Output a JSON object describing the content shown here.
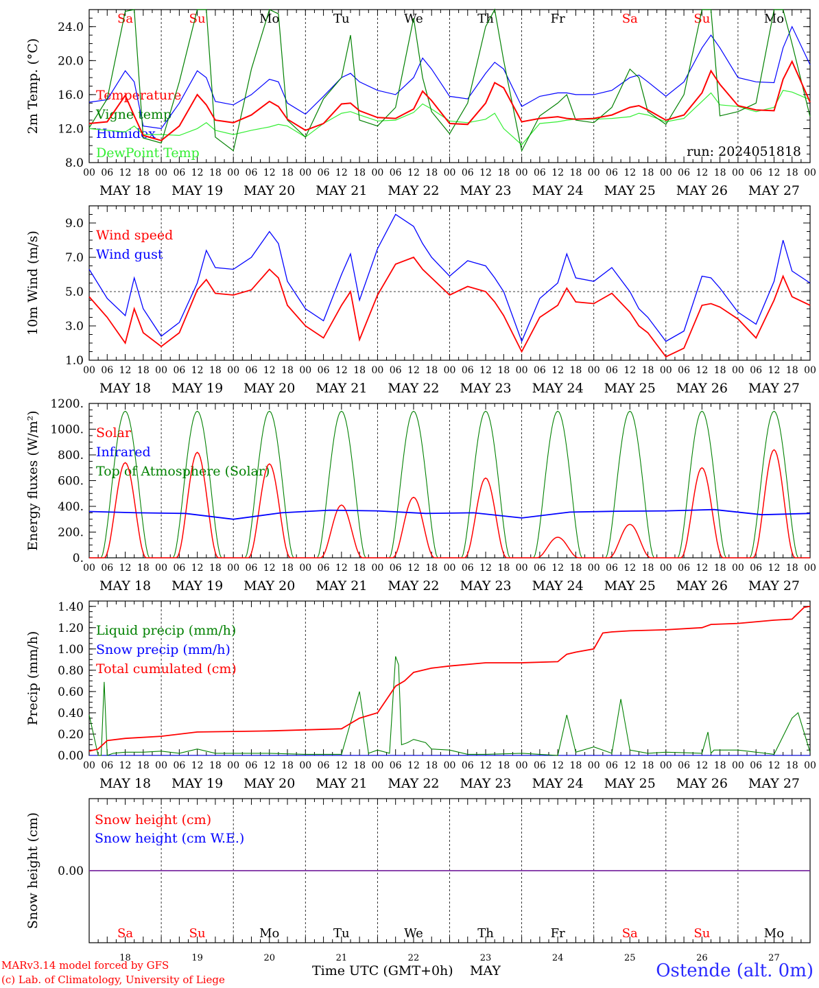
{
  "station": "Ostende (alt. 0m)",
  "credits": [
    "MARv3.14 model forced by GFS",
    "(c) Lab. of Climatology, University of Liege"
  ],
  "x_title": "Time UTC (GMT+0h)",
  "x_month": "MAY",
  "run_label": "run: 2024051818",
  "days": {
    "names": [
      "Sa",
      "Su",
      "Mo",
      "Tu",
      "We",
      "Th",
      "Fr",
      "Sa",
      "Su",
      "Mo"
    ],
    "weekend": [
      true,
      true,
      false,
      false,
      false,
      false,
      false,
      true,
      true,
      false
    ],
    "dates": [
      "MAY 18",
      "MAY 19",
      "MAY 20",
      "MAY 21",
      "MAY 22",
      "MAY 23",
      "MAY 24",
      "MAY 25",
      "MAY 26",
      "MAY 27"
    ],
    "numbers": [
      "18",
      "19",
      "20",
      "21",
      "22",
      "23",
      "24",
      "25",
      "26",
      "27"
    ],
    "hour_labels": [
      "00",
      "06",
      "12",
      "18"
    ],
    "last_hour_label": "00"
  },
  "colors": {
    "red": "#ff0000",
    "green": "#008000",
    "blue": "#0000ff",
    "lightgreen": "#33ee33",
    "purple": "#7a2aa0",
    "black": "#000000"
  },
  "chart_data": [
    {
      "type": "line",
      "ylabel": "2m Temp. (°C)",
      "ylim": [
        8,
        26
      ],
      "yticks": [
        "8.0",
        "12.0",
        "16.0",
        "20.0",
        "24.0"
      ],
      "ytick_values": [
        8,
        12,
        16,
        20,
        24
      ],
      "x_hours": [
        0,
        6,
        12,
        15,
        18,
        24,
        30,
        36,
        39,
        42,
        48,
        54,
        60,
        63,
        66,
        72,
        78,
        84,
        87,
        90,
        96,
        102,
        108,
        111,
        114,
        120,
        126,
        132,
        135,
        138,
        144,
        150,
        156,
        159,
        162,
        168,
        174,
        180,
        183,
        186,
        192,
        198,
        204,
        207,
        210,
        216,
        222,
        228,
        231,
        234,
        240
      ],
      "series": [
        {
          "name": "Temperature",
          "color": "red",
          "values": [
            12.6,
            12.8,
            15.9,
            13.5,
            11.2,
            10.6,
            12.3,
            16.0,
            14.8,
            13.0,
            12.7,
            13.6,
            15.2,
            14.6,
            13.1,
            11.8,
            12.6,
            14.9,
            15.0,
            14.1,
            13.3,
            13.2,
            14.3,
            16.4,
            15.3,
            12.6,
            12.5,
            15.0,
            17.4,
            16.8,
            12.8,
            13.2,
            13.4,
            13.2,
            13.1,
            13.2,
            13.6,
            14.5,
            14.7,
            14.2,
            13.0,
            13.6,
            16.2,
            18.8,
            17.2,
            14.7,
            14.2,
            14.1,
            17.8,
            19.9,
            15.1
          ],
          "x_override": [
            0,
            6,
            12,
            15,
            18,
            24,
            30,
            36,
            39,
            42,
            48,
            54,
            60,
            63,
            66,
            72,
            78,
            84,
            87,
            90,
            96,
            102,
            108,
            111,
            114,
            120,
            126,
            132,
            135,
            138,
            144,
            150,
            156,
            159,
            162,
            168,
            174,
            180,
            183,
            186,
            192,
            198,
            204,
            207,
            210,
            216,
            222,
            228,
            231,
            234,
            240
          ]
        },
        {
          "name": "Vigne temp",
          "color": "green",
          "values": [
            12.1,
            15.5,
            25.8,
            26.0,
            10.9,
            10.3,
            17.5,
            26.0,
            26.0,
            11.0,
            9.4,
            19.0,
            26.0,
            25.5,
            13.0,
            11.0,
            15.5,
            18.0,
            23.0,
            13.0,
            12.3,
            14.5,
            25.0,
            18.0,
            14.0,
            11.4,
            15.0,
            24.0,
            26.0,
            20.0,
            9.4,
            13.5,
            15.0,
            16.0,
            13.0,
            12.7,
            14.5,
            19.0,
            18.0,
            14.0,
            12.5,
            16.0,
            26.0,
            26.0,
            13.5,
            14.0,
            15.0,
            26.0,
            26.0,
            22.0,
            13.4
          ]
        },
        {
          "name": "Humidex",
          "color": "blue",
          "values": [
            15.1,
            15.4,
            18.8,
            17.5,
            12.3,
            12.0,
            15.0,
            18.8,
            18.0,
            15.2,
            14.8,
            16.0,
            17.8,
            17.5,
            15.0,
            13.7,
            15.8,
            18.0,
            18.5,
            17.5,
            16.5,
            16.0,
            18.0,
            20.3,
            19.0,
            15.8,
            15.5,
            18.5,
            19.8,
            19.0,
            14.6,
            15.8,
            16.2,
            16.2,
            16.0,
            16.0,
            16.5,
            18.0,
            18.3,
            17.5,
            15.8,
            17.5,
            21.5,
            23.0,
            21.5,
            18.0,
            17.5,
            17.4,
            21.5,
            24.0,
            19.5
          ]
        },
        {
          "name": "DewPoint Temp",
          "color": "lightgreen",
          "values": [
            12.0,
            11.8,
            11.6,
            12.3,
            11.3,
            11.3,
            11.2,
            12.0,
            12.7,
            11.8,
            11.3,
            11.8,
            12.2,
            12.5,
            12.3,
            11.0,
            12.6,
            13.8,
            14.0,
            13.6,
            12.9,
            13.0,
            13.9,
            14.9,
            14.3,
            12.9,
            12.7,
            13.1,
            13.8,
            12.0,
            10.1,
            12.6,
            12.8,
            13.0,
            13.1,
            13.1,
            13.2,
            13.4,
            13.8,
            13.6,
            12.8,
            13.2,
            15.2,
            16.2,
            14.8,
            14.6,
            14.0,
            14.5,
            16.5,
            16.3,
            15.4
          ]
        }
      ]
    },
    {
      "type": "line",
      "ylabel": "10m Wind (m/s)",
      "ylim": [
        1,
        10
      ],
      "yticks": [
        "1.0",
        "3.0",
        "5.0",
        "7.0",
        "9.0"
      ],
      "ytick_values": [
        1,
        3,
        5,
        7,
        9
      ],
      "reference_line": 5,
      "x_hours": [
        0,
        6,
        12,
        15,
        18,
        24,
        30,
        36,
        39,
        42,
        48,
        54,
        60,
        63,
        66,
        72,
        78,
        84,
        87,
        90,
        96,
        102,
        108,
        111,
        114,
        120,
        126,
        132,
        135,
        138,
        144,
        150,
        156,
        159,
        162,
        168,
        174,
        180,
        183,
        186,
        192,
        198,
        204,
        207,
        210,
        216,
        222,
        228,
        231,
        234,
        240
      ],
      "series": [
        {
          "name": "Wind speed",
          "color": "red",
          "values": [
            4.7,
            3.5,
            2.0,
            4.0,
            2.6,
            1.8,
            2.6,
            5.1,
            5.7,
            4.9,
            4.8,
            5.1,
            6.3,
            5.8,
            4.2,
            3.0,
            2.3,
            4.2,
            5.0,
            2.2,
            4.8,
            6.6,
            7.0,
            6.3,
            5.8,
            4.8,
            5.3,
            5.0,
            4.4,
            3.6,
            1.5,
            3.5,
            4.2,
            5.2,
            4.4,
            4.3,
            4.9,
            3.8,
            3.0,
            2.6,
            1.2,
            1.7,
            4.2,
            4.3,
            4.1,
            3.4,
            2.3,
            4.5,
            5.9,
            4.7,
            4.2
          ]
        },
        {
          "name": "Wind gust",
          "color": "blue",
          "values": [
            6.3,
            4.6,
            3.6,
            5.8,
            4.0,
            2.4,
            3.2,
            5.5,
            7.4,
            6.4,
            6.3,
            7.0,
            8.5,
            7.8,
            5.6,
            4.0,
            3.3,
            6.0,
            7.2,
            4.5,
            7.5,
            9.5,
            8.8,
            7.8,
            7.0,
            5.9,
            6.8,
            6.5,
            5.8,
            5.0,
            2.1,
            4.6,
            5.5,
            7.2,
            5.8,
            5.6,
            6.4,
            5.0,
            4.0,
            3.5,
            2.1,
            2.7,
            5.9,
            5.8,
            5.2,
            3.8,
            3.1,
            5.6,
            8.0,
            6.2,
            5.5
          ]
        }
      ]
    },
    {
      "type": "line",
      "ylabel": "Energy fluxes (W/m²)",
      "ylim": [
        0,
        1200
      ],
      "yticks": [
        "0.",
        "200.",
        "400.",
        "600.",
        "800.",
        "1000.",
        "1200."
      ],
      "ytick_values": [
        0,
        200,
        400,
        600,
        800,
        1000,
        1200
      ],
      "series": [
        {
          "name": "Solar",
          "color": "red",
          "day_peaks": [
            740,
            820,
            730,
            410,
            470,
            620,
            160,
            260,
            700,
            840
          ]
        },
        {
          "name": "Infrared",
          "color": "blue",
          "values": [
            360,
            350,
            345,
            300,
            350,
            370,
            365,
            345,
            350,
            310,
            355,
            362,
            365,
            375,
            335,
            345
          ]
        },
        {
          "name": "Top of Atmosphere (Solar)",
          "color": "green",
          "peak": 1140
        }
      ]
    },
    {
      "type": "line",
      "ylabel": "Precip (mm/h)",
      "ylim": [
        0,
        1.45
      ],
      "yticks": [
        "0.00",
        "0.20",
        "0.40",
        "0.60",
        "0.80",
        "1.00",
        "1.20",
        "1.40"
      ],
      "ytick_values": [
        0,
        0.2,
        0.4,
        0.6,
        0.8,
        1.0,
        1.2,
        1.4
      ],
      "series": [
        {
          "name": "Liquid precip (mm/h)",
          "color": "green",
          "x": [
            0,
            3,
            4,
            5,
            6,
            8,
            12,
            18,
            24,
            30,
            36,
            42,
            48,
            60,
            72,
            84,
            90,
            93,
            96,
            100,
            102,
            103,
            104,
            106,
            108,
            112,
            114,
            120,
            126,
            132,
            144,
            156,
            159,
            162,
            168,
            174,
            177,
            180,
            186,
            192,
            204,
            206,
            207,
            208,
            210,
            216,
            228,
            234,
            236,
            240
          ],
          "values": [
            0.38,
            0.0,
            0.0,
            0.69,
            0.0,
            0.02,
            0.03,
            0.03,
            0.04,
            0.02,
            0.06,
            0.02,
            0.02,
            0.02,
            0.01,
            0.01,
            0.6,
            0.02,
            0.05,
            0.02,
            0.93,
            0.85,
            0.1,
            0.12,
            0.15,
            0.12,
            0.06,
            0.05,
            0.01,
            0.01,
            0.02,
            0.0,
            0.38,
            0.03,
            0.08,
            0.02,
            0.53,
            0.05,
            0.02,
            0.03,
            0.02,
            0.22,
            0.02,
            0.05,
            0.05,
            0.05,
            0.01,
            0.35,
            0.4,
            0.03
          ]
        },
        {
          "name": "Snow precip (mm/h)",
          "color": "blue",
          "x": [
            0,
            240
          ],
          "values": [
            0,
            0
          ]
        },
        {
          "name": "Total cumulated (cm)",
          "color": "red",
          "x": [
            0,
            3,
            6,
            12,
            24,
            36,
            60,
            84,
            90,
            96,
            102,
            105,
            108,
            114,
            120,
            132,
            144,
            156,
            159,
            162,
            168,
            171,
            174,
            180,
            192,
            204,
            207,
            216,
            228,
            234,
            238,
            240
          ],
          "values": [
            0.04,
            0.06,
            0.14,
            0.16,
            0.18,
            0.22,
            0.23,
            0.25,
            0.35,
            0.4,
            0.65,
            0.7,
            0.78,
            0.82,
            0.84,
            0.87,
            0.87,
            0.88,
            0.95,
            0.97,
            1.0,
            1.15,
            1.16,
            1.17,
            1.18,
            1.2,
            1.23,
            1.24,
            1.27,
            1.28,
            1.39,
            1.4
          ]
        }
      ]
    },
    {
      "type": "line",
      "ylabel": "Snow height (cm)",
      "ylim": [
        -1,
        1
      ],
      "yticks": [
        "0.00"
      ],
      "ytick_values": [
        0
      ],
      "series": [
        {
          "name": "Snow height (cm)",
          "color": "red",
          "x": [
            0,
            240
          ],
          "values": [
            0,
            0
          ]
        },
        {
          "name": "Snow height (cm W.E.)",
          "color": "blue",
          "x": [
            0,
            240
          ],
          "values": [
            0,
            0
          ]
        }
      ]
    }
  ]
}
